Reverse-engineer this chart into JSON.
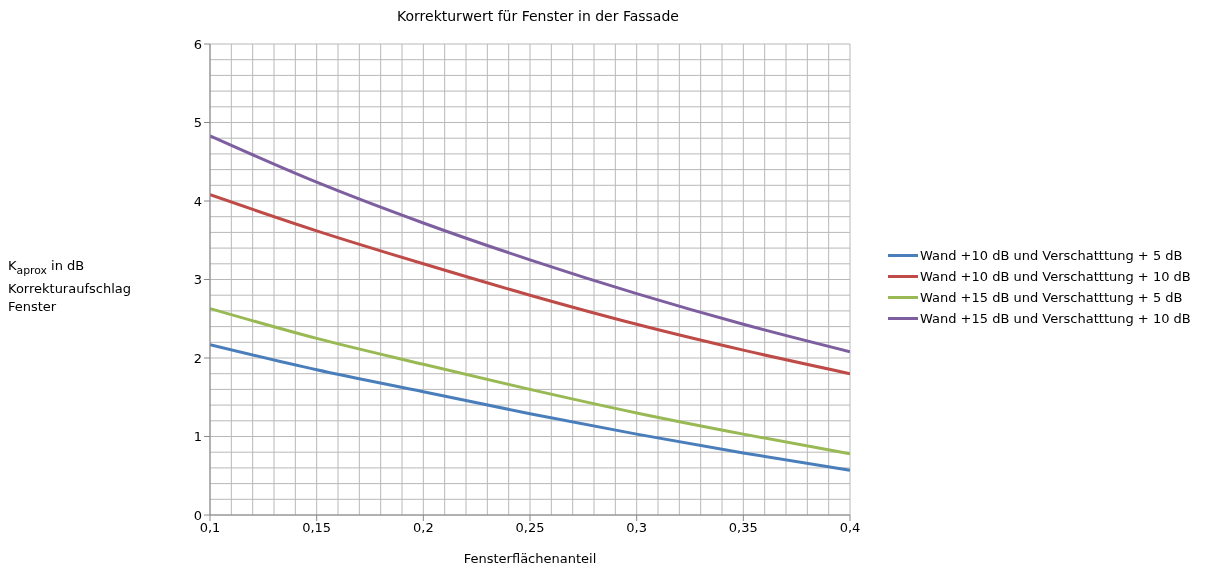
{
  "chart_data": {
    "type": "line",
    "title": "Korrekturwert für Fenster in der Fassade",
    "xlabel": "Fensterflächenanteil",
    "ylabel": "K$_{aprox}$ in dB Korrekturaufschlag Fenster",
    "x": [
      0.1,
      0.15,
      0.2,
      0.25,
      0.3,
      0.35,
      0.4
    ],
    "series": [
      {
        "name": "Wand +10 dB und Verschatttung + 5 dB",
        "color": "#4a7ebb",
        "values": [
          2.17,
          1.85,
          1.57,
          1.29,
          1.03,
          0.79,
          0.57
        ]
      },
      {
        "name": "Wand +10 dB und Verschatttung + 10 dB",
        "color": "#be4b48",
        "values": [
          4.08,
          3.62,
          3.2,
          2.8,
          2.43,
          2.1,
          1.8
        ]
      },
      {
        "name": "Wand +15 dB und Verschatttung + 5 dB",
        "color": "#98b954",
        "values": [
          2.63,
          2.25,
          1.92,
          1.6,
          1.3,
          1.03,
          0.78
        ]
      },
      {
        "name": "Wand +15 dB und Verschatttung + 10 dB",
        "color": "#7d5fa0",
        "values": [
          4.83,
          4.24,
          3.72,
          3.25,
          2.82,
          2.43,
          2.08
        ]
      }
    ],
    "xlim": [
      0.1,
      0.4
    ],
    "xticks": [
      {
        "value": 0.1,
        "label": "0,1"
      },
      {
        "value": 0.15,
        "label": "0,15"
      },
      {
        "value": 0.2,
        "label": "0,2"
      },
      {
        "value": 0.25,
        "label": "0,25"
      },
      {
        "value": 0.3,
        "label": "0,3"
      },
      {
        "value": 0.35,
        "label": "0,35"
      },
      {
        "value": 0.4,
        "label": "0,4"
      }
    ],
    "ylim": [
      0,
      6
    ],
    "yticks": [
      0,
      1,
      2,
      3,
      4,
      5,
      6
    ],
    "grid": true,
    "legend": "right",
    "marker": "none",
    "line_style": "solid"
  }
}
